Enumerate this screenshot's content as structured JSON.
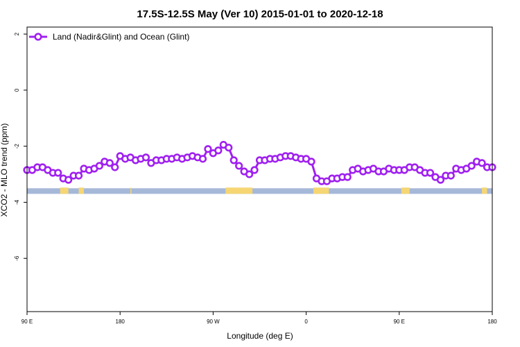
{
  "chart_data": {
    "type": "line",
    "title": "17.5S-12.5S May (Ver 10)   2015-01-01 to 2020-12-18",
    "xlabel": "Longitude (deg E)",
    "ylabel": "XCO2 - MLO trend (ppm)",
    "x_ticks": [
      {
        "value": 90,
        "label": "90 E"
      },
      {
        "value": 180,
        "label": "180"
      },
      {
        "value": 270,
        "label": "90 W"
      },
      {
        "value": 360,
        "label": "0"
      },
      {
        "value": 450,
        "label": "90 E"
      },
      {
        "value": 540,
        "label": "180"
      }
    ],
    "y_ticks": [
      {
        "value": 2,
        "label": "2"
      },
      {
        "value": 0,
        "label": "0"
      },
      {
        "value": -2,
        "label": "-2"
      },
      {
        "value": -4,
        "label": "-4"
      },
      {
        "value": -6,
        "label": "-6"
      }
    ],
    "xlim": [
      90,
      540
    ],
    "ylim": [
      -7.9,
      2.25
    ],
    "grid": false,
    "legend_position": "top-left",
    "series": [
      {
        "name": "Land (Nadir&Glint) and Ocean (Glint)",
        "color": "#a020f0",
        "x": [
          90,
          95,
          100,
          105,
          110,
          115,
          120,
          125,
          130,
          135,
          140,
          145,
          150,
          155,
          160,
          165,
          170,
          175,
          180,
          185,
          190,
          195,
          200,
          205,
          210,
          215,
          220,
          225,
          230,
          235,
          240,
          245,
          250,
          255,
          260,
          265,
          270,
          275,
          280,
          285,
          290,
          295,
          300,
          305,
          310,
          315,
          320,
          325,
          330,
          335,
          340,
          345,
          350,
          355,
          360,
          365,
          370,
          375,
          380,
          385,
          390,
          395,
          400,
          405,
          410,
          415,
          420,
          425,
          430,
          435,
          440,
          445,
          450,
          455,
          460,
          465,
          470,
          475,
          480,
          485,
          490,
          495,
          500,
          505,
          510,
          515,
          520,
          525,
          530,
          535,
          540
        ],
        "y": [
          -2.85,
          -2.85,
          -2.75,
          -2.75,
          -2.85,
          -2.95,
          -2.95,
          -3.15,
          -3.2,
          -3.05,
          -3.05,
          -2.8,
          -2.85,
          -2.8,
          -2.7,
          -2.55,
          -2.6,
          -2.75,
          -2.35,
          -2.45,
          -2.4,
          -2.5,
          -2.45,
          -2.4,
          -2.6,
          -2.5,
          -2.5,
          -2.45,
          -2.45,
          -2.4,
          -2.45,
          -2.4,
          -2.35,
          -2.4,
          -2.45,
          -2.1,
          -2.25,
          -2.15,
          -1.95,
          -2.05,
          -2.5,
          -2.7,
          -2.9,
          -3.0,
          -2.85,
          -2.5,
          -2.5,
          -2.45,
          -2.45,
          -2.4,
          -2.35,
          -2.35,
          -2.4,
          -2.45,
          -2.45,
          -2.55,
          -3.15,
          -3.25,
          -3.25,
          -3.15,
          -3.15,
          -3.1,
          -3.1,
          -2.85,
          -2.8,
          -2.9,
          -2.85,
          -2.8,
          -2.9,
          -2.9,
          -2.8,
          -2.85,
          -2.85,
          -2.85,
          -2.75,
          -2.75,
          -2.85,
          -2.95,
          -2.95,
          -3.1,
          -3.2,
          -3.05,
          -3.05,
          -2.8,
          -2.85,
          -2.8,
          -2.7,
          -2.55,
          -2.6,
          -2.75,
          -2.75
        ]
      }
    ],
    "colors": {
      "line": "#a020f0",
      "ocean_strip": "#a6b8d8",
      "land_strip": "#f5d673"
    },
    "surface_strip": {
      "y_top": -3.5,
      "y_bottom": -3.7,
      "land_ranges": [
        [
          122,
          130
        ],
        [
          140,
          145
        ],
        [
          190,
          190
        ],
        [
          282,
          308
        ],
        [
          367,
          382
        ],
        [
          452,
          460
        ],
        [
          530,
          535
        ]
      ]
    }
  }
}
